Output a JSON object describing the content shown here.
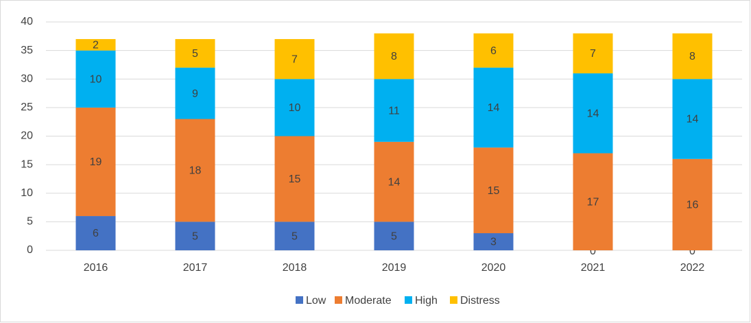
{
  "chart_data": {
    "type": "stacked_bar",
    "categories": [
      "2016",
      "2017",
      "2018",
      "2019",
      "2020",
      "2021",
      "2022"
    ],
    "series": [
      {
        "name": "Low",
        "color": "#4472c4",
        "values": [
          6,
          5,
          5,
          5,
          3,
          0,
          0
        ]
      },
      {
        "name": "Moderate",
        "color": "#ed7d31",
        "values": [
          19,
          18,
          15,
          14,
          15,
          17,
          16
        ]
      },
      {
        "name": "High",
        "color": "#00b0f0",
        "values": [
          10,
          9,
          10,
          11,
          14,
          14,
          14
        ]
      },
      {
        "name": "Distress",
        "color": "#ffc000",
        "values": [
          2,
          5,
          7,
          8,
          6,
          7,
          8
        ]
      }
    ],
    "ylim": [
      0,
      40
    ],
    "yticks": [
      0,
      5,
      10,
      15,
      20,
      25,
      30,
      35,
      40
    ],
    "grid": true,
    "legend": "bottom"
  }
}
